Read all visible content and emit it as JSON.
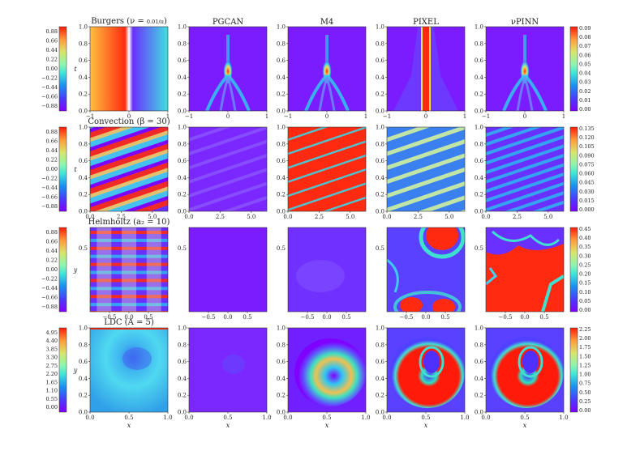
{
  "rows": [
    {
      "name": "burgers",
      "title_base": "Burgers (",
      "title_nu": "ν = ",
      "title_num": "0.01",
      "title_den": "π",
      "title_close": ")",
      "colorbar_left_ticks": [
        "0.88",
        "0.66",
        "0.44",
        "0.22",
        "0.00",
        "−0.22",
        "−0.44",
        "−0.66",
        "−0.88"
      ],
      "colorbar_right_ticks": [
        "0.09",
        "0.08",
        "0.07",
        "0.06",
        "0.05",
        "0.04",
        "0.03",
        "0.02",
        "0.01",
        "0.00"
      ],
      "ylabel": "t",
      "xlabel": "",
      "xticks": [
        "−1",
        "0",
        "1"
      ],
      "yticks": [
        "0.0",
        "0.2",
        "0.4",
        "0.6",
        "0.8",
        "1.0"
      ],
      "colorbar_left_range": [
        -0.98,
        0.98
      ],
      "colorbar_right_range": [
        0,
        0.095
      ]
    },
    {
      "name": "convection",
      "title_base": "Convection (",
      "title_beta": "β = 30",
      "title_close": ")",
      "colorbar_left_ticks": [
        "0.88",
        "0.66",
        "0.44",
        "0.22",
        "0.00",
        "−0.22",
        "−0.44",
        "−0.66",
        "−0.88"
      ],
      "colorbar_right_ticks": [
        "0.135",
        "0.120",
        "0.105",
        "0.090",
        "0.075",
        "0.060",
        "0.045",
        "0.030",
        "0.015",
        "0.000"
      ],
      "ylabel": "t",
      "xlabel": "",
      "xticks": [
        "0.0",
        "2.5",
        "5.0"
      ],
      "yticks": [
        "0.0",
        "0.2",
        "0.4",
        "0.6",
        "0.8",
        "1.0"
      ],
      "colorbar_left_range": [
        -0.98,
        0.98
      ],
      "colorbar_right_range": [
        0,
        0.14
      ]
    },
    {
      "name": "helmholtz",
      "title_base": "Helmholtz (",
      "title_a": "a₂ = 10",
      "title_close": ")",
      "colorbar_left_ticks": [
        "0.88",
        "0.66",
        "0.44",
        "0.22",
        "0.00",
        "−0.22",
        "−0.44",
        "−0.66",
        "−0.88"
      ],
      "colorbar_right_ticks": [
        "0.45",
        "0.40",
        "0.35",
        "0.30",
        "0.25",
        "0.20",
        "0.15",
        "0.10",
        "0.05",
        "0.00"
      ],
      "ylabel": "y",
      "xlabel": "",
      "xticks": [
        "−0.5",
        "0.0",
        "0.5"
      ],
      "yticks": [
        "0.5"
      ],
      "colorbar_left_range": [
        -0.98,
        0.98
      ],
      "colorbar_right_range": [
        0,
        0.47
      ]
    },
    {
      "name": "ldc",
      "title_base": "LDC (",
      "title_A": "A = 5",
      "title_close": ")",
      "colorbar_left_ticks": [
        "4.95",
        "4.40",
        "3.85",
        "3.30",
        "2.75",
        "2.20",
        "1.65",
        "1.10",
        "0.55",
        "0.00"
      ],
      "colorbar_right_ticks": [
        "2.25",
        "2.00",
        "1.75",
        "1.50",
        "1.25",
        "1.00",
        "0.75",
        "0.50",
        "0.25",
        "0.00"
      ],
      "ylabel": "y",
      "xlabel": "x",
      "xticks": [
        "0.0",
        "0.5",
        "1.0"
      ],
      "yticks": [
        "0.0",
        "0.2",
        "0.4",
        "0.6",
        "0.8",
        "1.0"
      ],
      "colorbar_left_range": [
        0,
        5.1
      ],
      "colorbar_right_range": [
        0,
        2.3
      ]
    }
  ],
  "columns": [
    "",
    "PGCAN",
    "M4",
    "PIXEL",
    "νPINN"
  ],
  "chart_data": {
    "type": "heatmap",
    "layout": "4 rows (PDE problems) × 5 columns (ground truth + 4 methods' absolute error maps)",
    "column_labels": [
      "",
      "PGCAN",
      "M4",
      "PIXEL",
      "νPINN"
    ],
    "row_titles": [
      "Burgers (ν = 0.01/π)",
      "Convection (β = 30)",
      "Helmholtz (a₂ = 10)",
      "LDC (A = 5)"
    ],
    "colormap": "rainbow (purple → blue → cyan → green → yellow → orange → red)",
    "ground_truth_colorbars": [
      {
        "row": "Burgers",
        "range": [
          -0.98,
          0.98
        ]
      },
      {
        "row": "Convection",
        "range": [
          -0.98,
          0.98
        ]
      },
      {
        "row": "Helmholtz",
        "range": [
          -0.98,
          0.98
        ]
      },
      {
        "row": "LDC",
        "range": [
          0,
          5.1
        ]
      }
    ],
    "error_colorbars": [
      {
        "row": "Burgers",
        "range": [
          0,
          0.095
        ]
      },
      {
        "row": "Convection",
        "range": [
          0,
          0.14
        ]
      },
      {
        "row": "Helmholtz",
        "range": [
          0,
          0.47
        ]
      },
      {
        "row": "LDC",
        "range": [
          0,
          2.3
        ]
      }
    ]
  }
}
